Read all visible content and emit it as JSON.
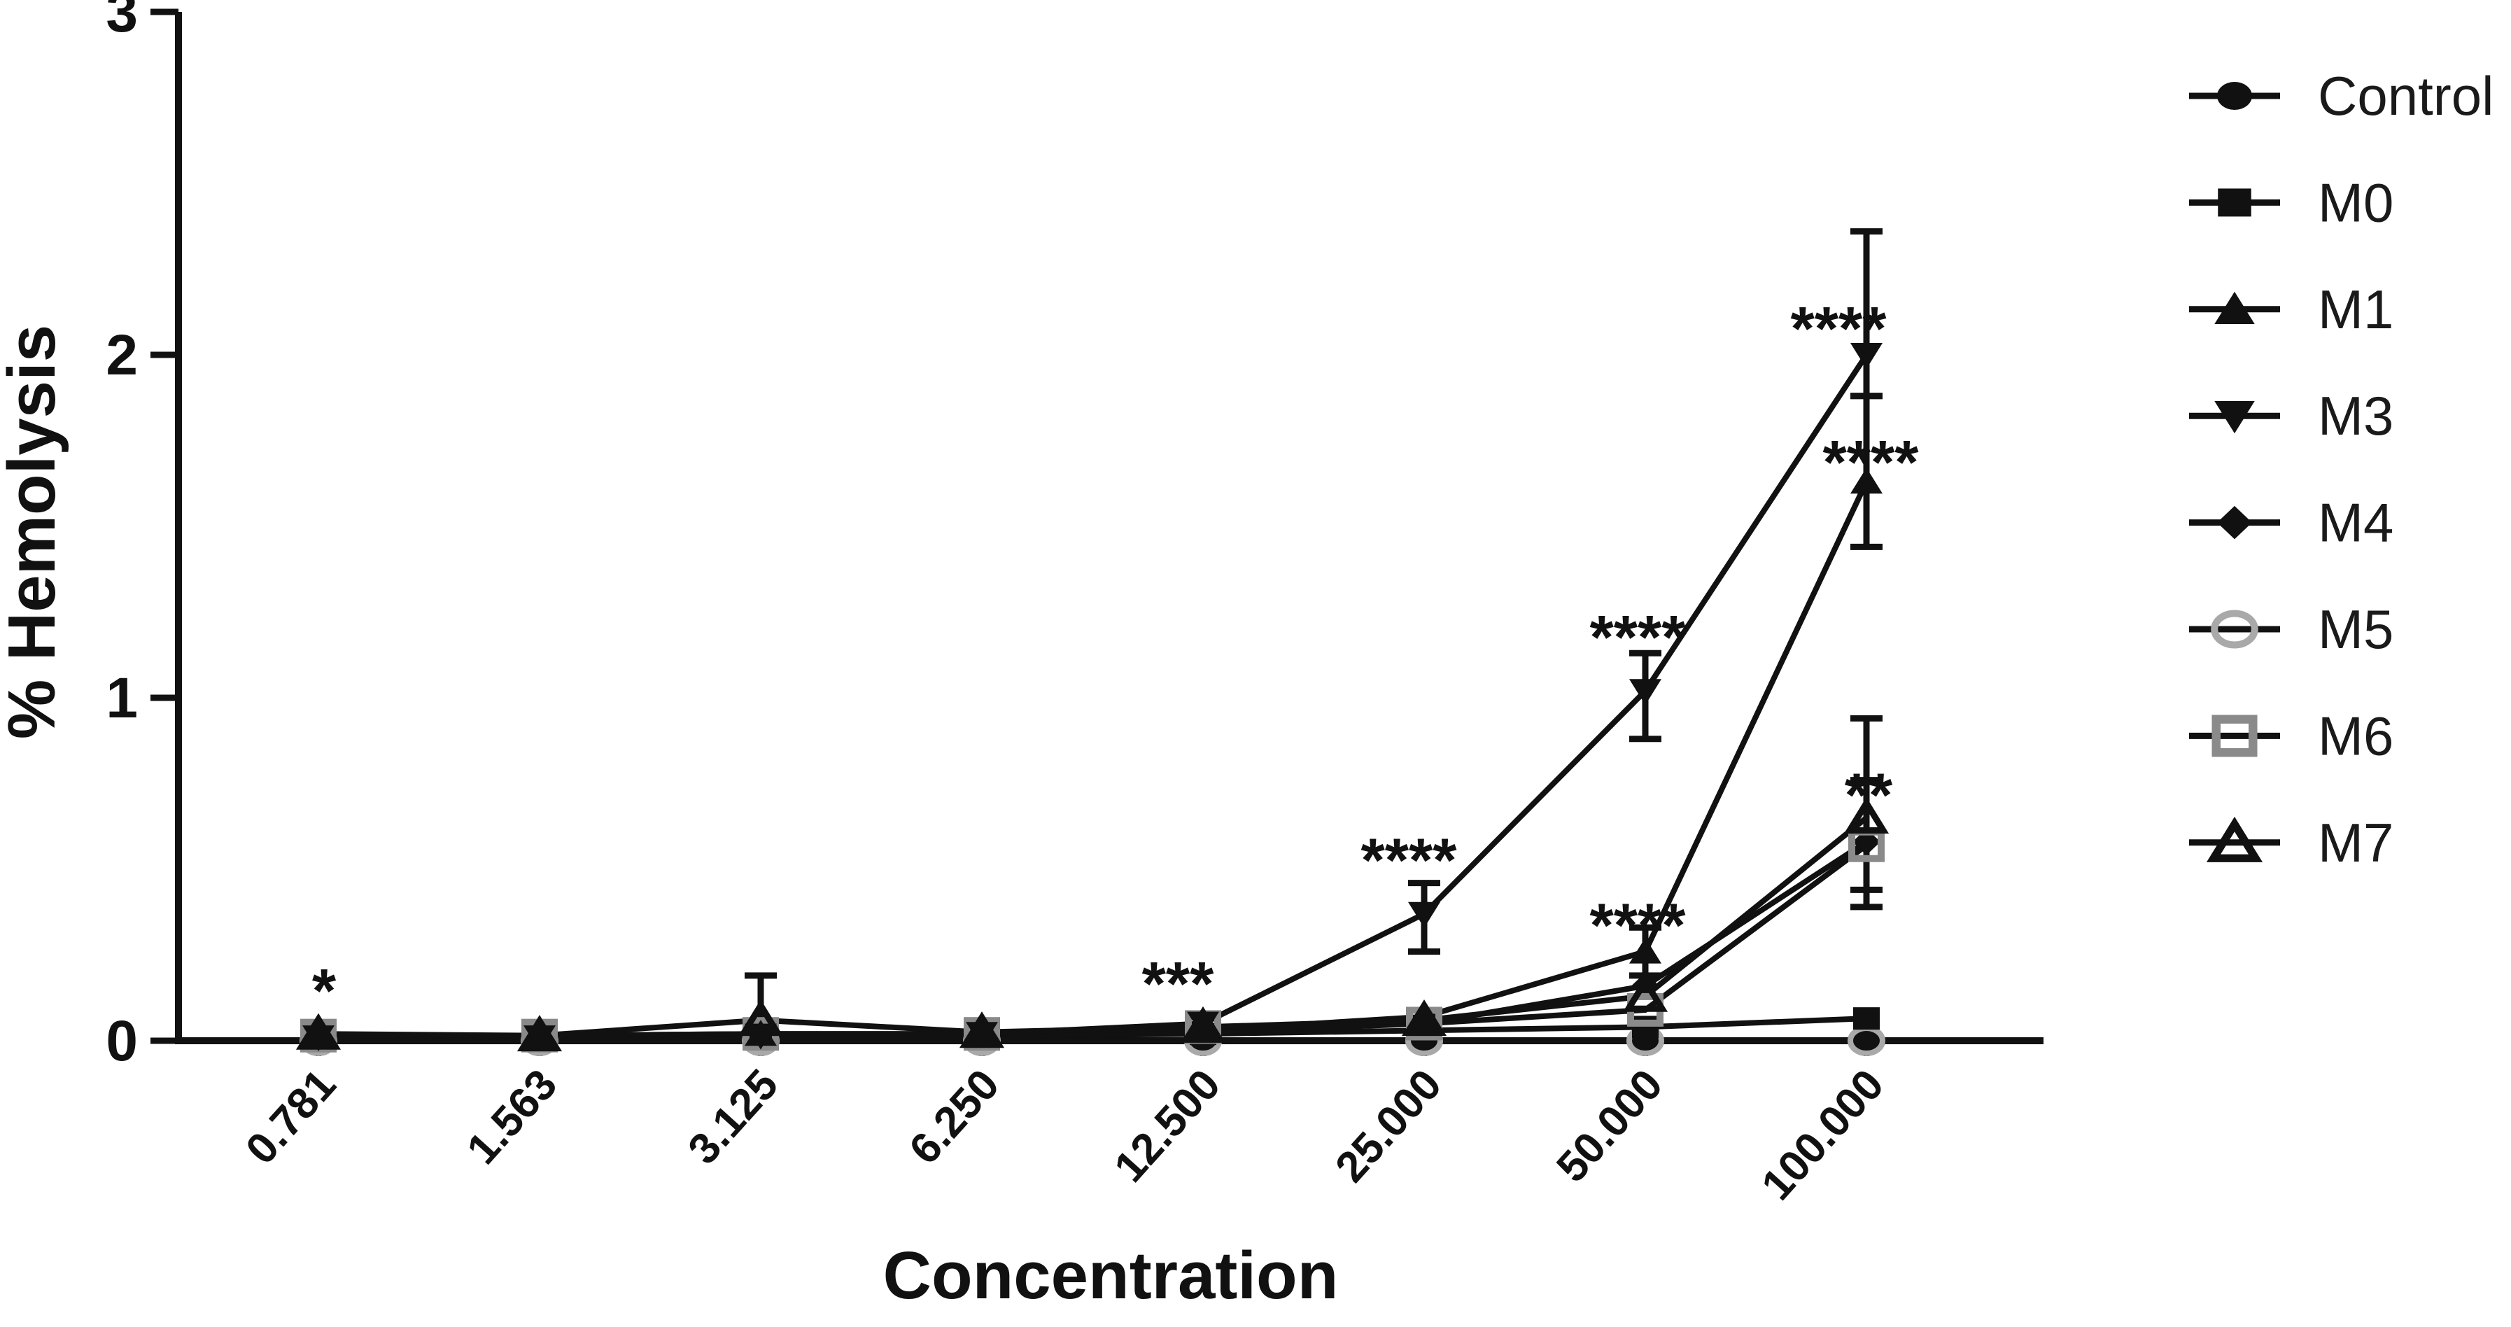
{
  "figure": {
    "background": "#ffffff",
    "ink_color": "#111111",
    "legend_position": "right"
  },
  "chart_data": {
    "type": "line",
    "title": "",
    "xlabel": "Concentration",
    "ylabel": "% Hemolysis",
    "ylim": [
      0,
      3
    ],
    "yticks": [
      "0",
      "1",
      "2",
      "3"
    ],
    "grid": "off",
    "categories": [
      "0.781",
      "1.563",
      "3.125",
      "6.250",
      "12.500",
      "25.000",
      "50.000",
      "100.000"
    ],
    "series": [
      {
        "name": "Control",
        "legend_label": "Control",
        "marker": "circle-filled",
        "color": "#111111",
        "marker_color": "#111111",
        "values": [
          0,
          0,
          0,
          0,
          0,
          0,
          0,
          0
        ]
      },
      {
        "name": "M0",
        "legend_label": "M0",
        "marker": "square-filled",
        "color": "#111111",
        "marker_color": "#111111",
        "values": [
          0.01,
          0.01,
          0.01,
          0.015,
          0.02,
          0.03,
          0.04,
          0.065
        ]
      },
      {
        "name": "M1",
        "legend_label": "M1",
        "marker": "triangle-up-filled",
        "color": "#111111",
        "marker_color": "#111111",
        "values": [
          0.015,
          0.015,
          0.02,
          0.02,
          0.03,
          0.07,
          0.26,
          1.63
        ]
      },
      {
        "name": "M3",
        "legend_label": "M3",
        "marker": "triangle-down-filled",
        "color": "#111111",
        "marker_color": "#111111",
        "values": [
          0.01,
          0.01,
          0.015,
          0.02,
          0.05,
          0.37,
          1.02,
          2.0
        ]
      },
      {
        "name": "M4",
        "legend_label": "M4",
        "marker": "diamond-filled",
        "color": "#111111",
        "marker_color": "#111111",
        "values": [
          0.01,
          0.01,
          0.01,
          0.015,
          0.025,
          0.05,
          0.16,
          0.58
        ]
      },
      {
        "name": "M5",
        "legend_label": "M5",
        "marker": "circle-open",
        "color": "#111111",
        "marker_color": "#a9a9a9",
        "values": [
          0,
          0,
          0,
          0,
          0,
          0,
          0,
          0
        ]
      },
      {
        "name": "M6",
        "legend_label": "M6",
        "marker": "square-open",
        "color": "#111111",
        "marker_color": "#8a8a8a",
        "values": [
          0.015,
          0.015,
          0.02,
          0.02,
          0.04,
          0.05,
          0.09,
          0.57
        ]
      },
      {
        "name": "M7",
        "legend_label": "M7",
        "marker": "triangle-open",
        "color": "#111111",
        "marker_color": "#111111",
        "values": [
          0.02,
          0.015,
          0.06,
          0.025,
          0.04,
          0.06,
          0.13,
          0.65
        ]
      }
    ],
    "error_bars": [
      {
        "series": "M7",
        "category": "3.125",
        "low": 0.0,
        "high": 0.19
      },
      {
        "series": "M3",
        "category": "25.000",
        "low": 0.26,
        "high": 0.46
      },
      {
        "series": "M1",
        "category": "50.000",
        "low": 0.19,
        "high": 0.33
      },
      {
        "series": "M3",
        "category": "50.000",
        "low": 0.88,
        "high": 1.13
      },
      {
        "series": "M6",
        "category": "100.000",
        "low": 0.39,
        "high": 0.76
      },
      {
        "series": "M7",
        "category": "100.000",
        "low": 0.44,
        "high": 0.94
      },
      {
        "series": "M1",
        "category": "100.000",
        "low": 1.44,
        "high": 1.88
      },
      {
        "series": "M3",
        "category": "100.000",
        "low": 1.88,
        "high": 2.36
      }
    ],
    "annotations": [
      {
        "text": "*",
        "category": "0.781",
        "y": 0.13,
        "dx": 8
      },
      {
        "text": "***",
        "category": "12.500",
        "y": 0.15,
        "dx": -36
      },
      {
        "text": "****",
        "category": "25.000",
        "y": 0.51,
        "dx": -22
      },
      {
        "text": "****",
        "category": "50.000",
        "y": 0.32,
        "dx": -11
      },
      {
        "text": "****",
        "category": "50.000",
        "y": 1.16,
        "dx": -11
      },
      {
        "text": "****",
        "category": "100.000",
        "y": 0.7,
        "dx": 3,
        "note": "two stars",
        "text_override": "**"
      },
      {
        "text": "****",
        "category": "100.000",
        "y": 1.67,
        "dx": 6
      },
      {
        "text": "****",
        "category": "100.000",
        "y": 2.06,
        "dx": -40
      }
    ],
    "legend": [
      "Control",
      "M0",
      "M1",
      "M3",
      "M4",
      "M5",
      "M6",
      "M7"
    ]
  }
}
